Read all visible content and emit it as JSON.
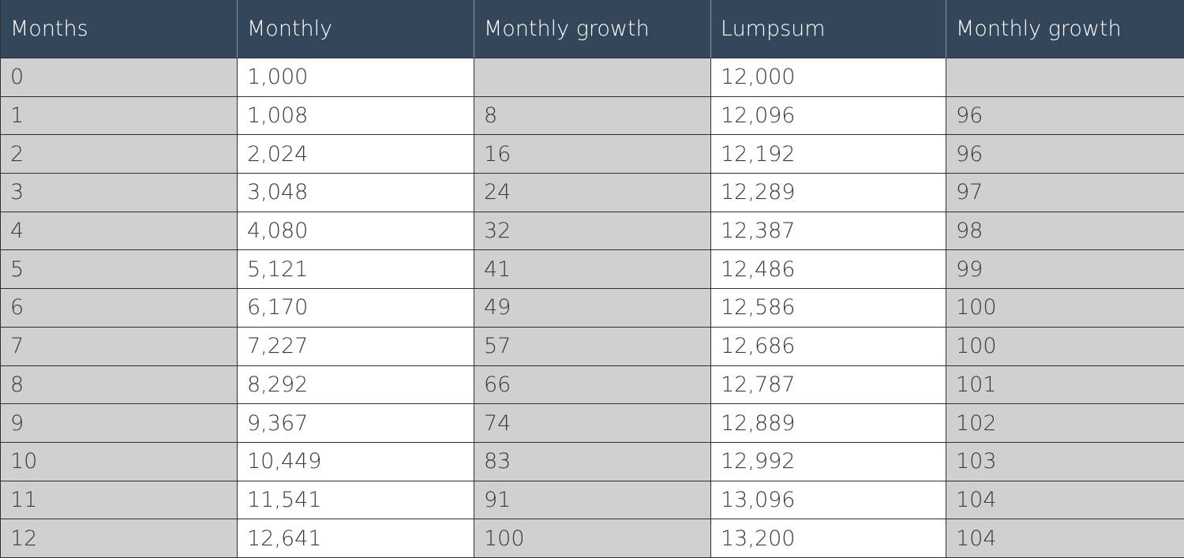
{
  "table": {
    "header": [
      "Months",
      "Monthly",
      "Monthly growth",
      "Lumpsum",
      "Monthly growth"
    ],
    "rows": [
      [
        "0",
        "1,000",
        null,
        "12,000",
        null
      ],
      [
        "1",
        "1,008",
        "8",
        "12,096",
        "96"
      ],
      [
        "2",
        "2,024",
        "16",
        "12,192",
        "96"
      ],
      [
        "3",
        "3,048",
        "24",
        "12,289",
        "97"
      ],
      [
        "4",
        "4,080",
        "32",
        "12,387",
        "98"
      ],
      [
        "5",
        "5,121",
        "41",
        "12,486",
        "99"
      ],
      [
        "6",
        "6,170",
        "49",
        "12,586",
        "100"
      ],
      [
        "7",
        "7,227",
        "57",
        "12,686",
        "100"
      ],
      [
        "8",
        "8,292",
        "66",
        "12,787",
        "101"
      ],
      [
        "9",
        "9,367",
        "74",
        "12,889",
        "102"
      ],
      [
        "10",
        "10,449",
        "83",
        "12,992",
        "103"
      ],
      [
        "11",
        "11,541",
        "91",
        "13,096",
        "104"
      ],
      [
        "12",
        "12,641",
        "100",
        "13,200",
        "104"
      ]
    ]
  }
}
